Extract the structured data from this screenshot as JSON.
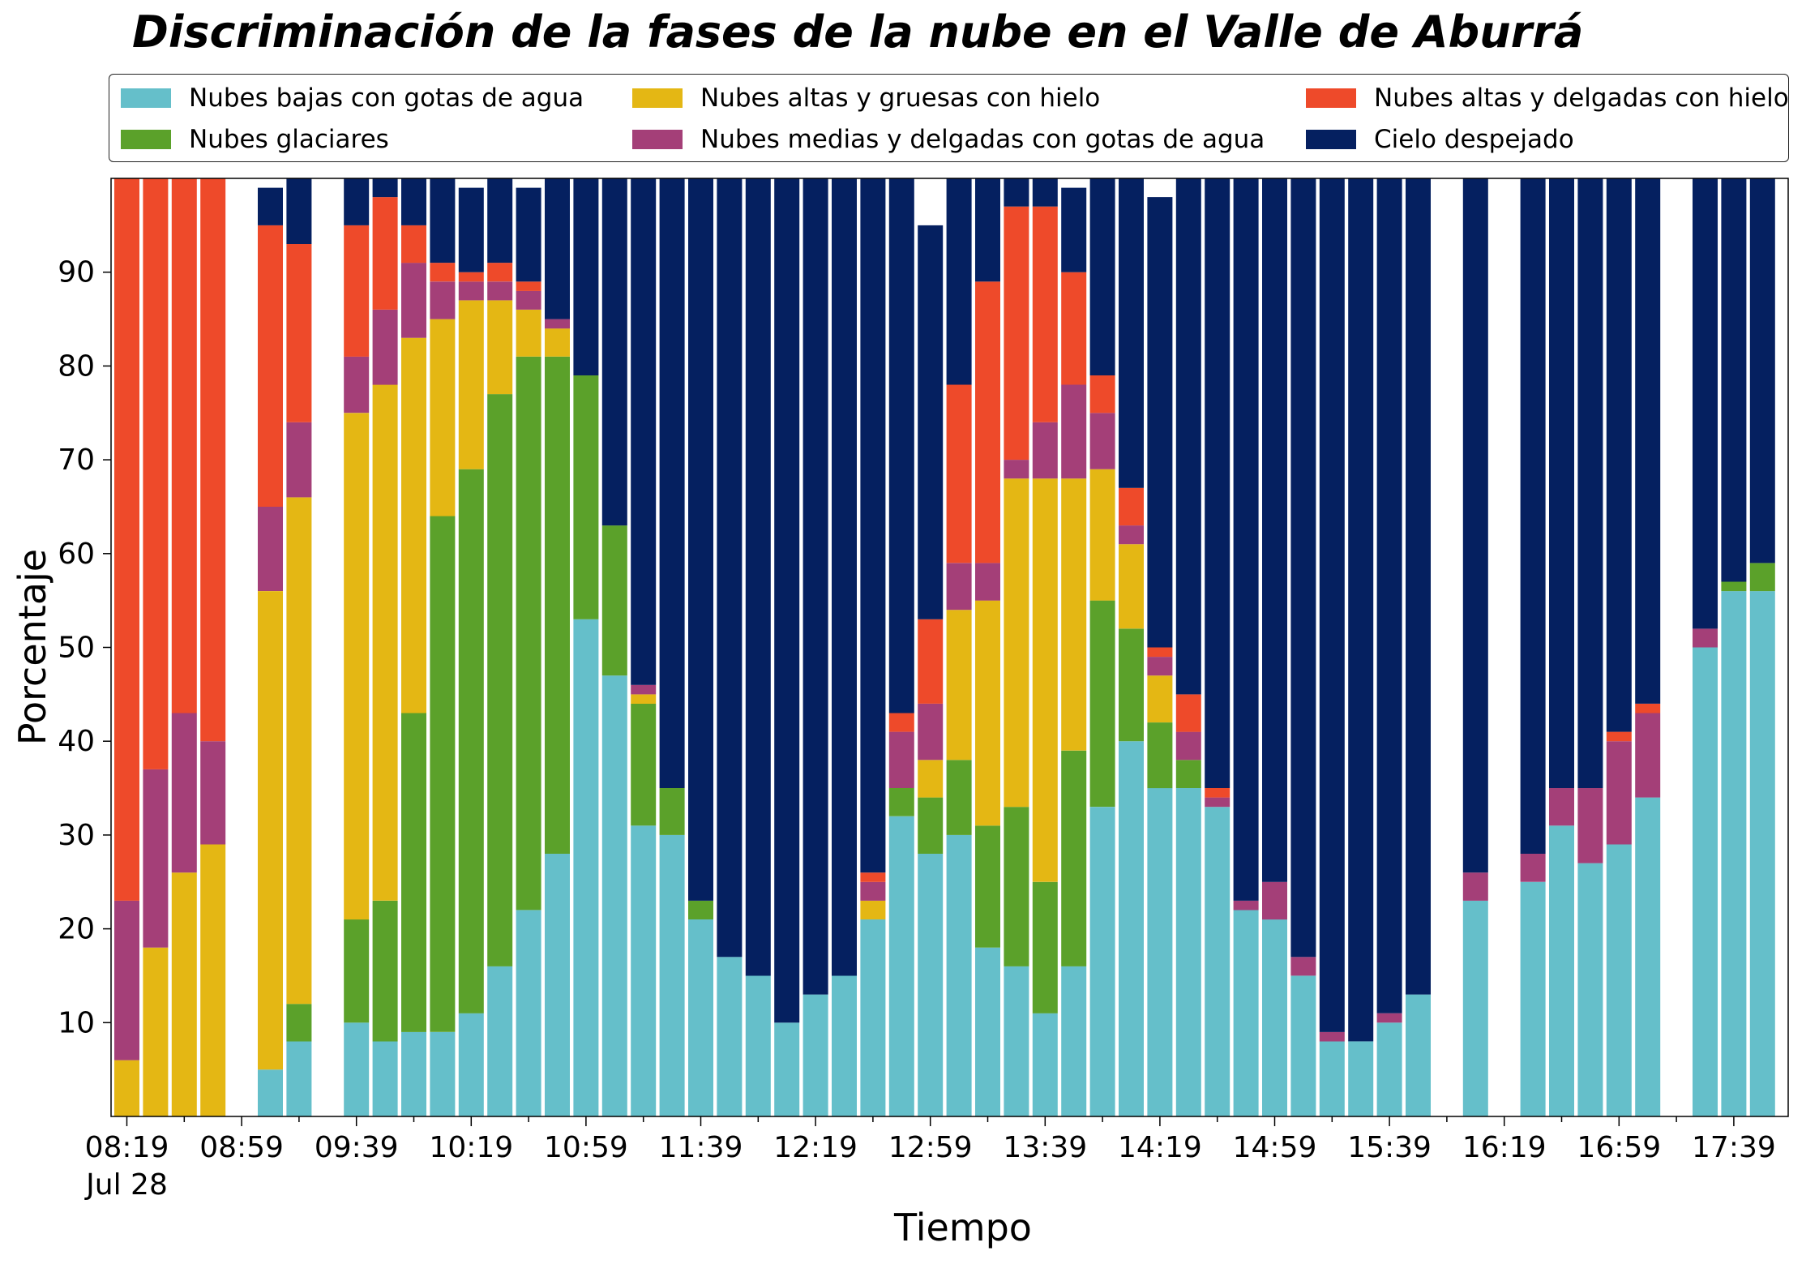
{
  "chart_data": {
    "type": "bar",
    "stacked": true,
    "title": "Discriminación de la fases de la nube en el Valle de Aburrá",
    "xlabel": "Tiempo",
    "ylabel": "Porcentaje",
    "ylim": [
      0,
      100
    ],
    "yticks": [
      10,
      20,
      30,
      40,
      50,
      60,
      70,
      80,
      90
    ],
    "grid": false,
    "legend_position": "top",
    "x_start": "08:19",
    "x_step_minutes": 10,
    "x_count": 59,
    "xtick_labels": [
      "08:19",
      "08:59",
      "09:39",
      "10:19",
      "10:59",
      "11:39",
      "12:19",
      "12:59",
      "13:39",
      "14:19",
      "14:59",
      "15:39",
      "16:19",
      "16:59",
      "17:39"
    ],
    "xtick_date_label": "Jul 28",
    "series": [
      {
        "name": "Nubes bajas con gotas de agua",
        "color": "#65bfca",
        "values": [
          0,
          0,
          0,
          0,
          null,
          5,
          8,
          null,
          10,
          8,
          9,
          9,
          11,
          16,
          22,
          28,
          53,
          47,
          31,
          30,
          21,
          17,
          15,
          10,
          13,
          15,
          21,
          32,
          28,
          30,
          18,
          16,
          11,
          16,
          33,
          40,
          35,
          35,
          33,
          22,
          21,
          15,
          8,
          8,
          10,
          13,
          null,
          23,
          null,
          25,
          31,
          27,
          29,
          34,
          null,
          50,
          56,
          56,
          null
        ]
      },
      {
        "name": "Nubes glaciares",
        "color": "#5ba12a",
        "values": [
          0,
          0,
          0,
          0,
          null,
          0,
          4,
          null,
          11,
          15,
          34,
          55,
          58,
          61,
          59,
          53,
          26,
          16,
          13,
          5,
          2,
          0,
          0,
          0,
          0,
          0,
          0,
          3,
          6,
          8,
          13,
          17,
          14,
          23,
          22,
          12,
          7,
          3,
          0,
          0,
          0,
          0,
          0,
          0,
          0,
          0,
          null,
          0,
          null,
          0,
          0,
          0,
          0,
          0,
          null,
          0,
          1,
          3,
          null
        ]
      },
      {
        "name": "Nubes altas y gruesas con hielo",
        "color": "#e4b714",
        "values": [
          6,
          18,
          26,
          29,
          null,
          51,
          54,
          null,
          54,
          55,
          40,
          21,
          18,
          10,
          5,
          3,
          0,
          0,
          1,
          0,
          0,
          0,
          0,
          0,
          0,
          0,
          2,
          0,
          4,
          16,
          24,
          35,
          43,
          29,
          14,
          9,
          5,
          0,
          0,
          0,
          0,
          0,
          0,
          0,
          0,
          0,
          null,
          0,
          null,
          0,
          0,
          0,
          0,
          0,
          null,
          0,
          0,
          0,
          null
        ]
      },
      {
        "name": "Nubes medias y delgadas con gotas de agua",
        "color": "#a43f78",
        "values": [
          17,
          19,
          17,
          11,
          null,
          9,
          8,
          null,
          6,
          8,
          8,
          4,
          2,
          2,
          2,
          1,
          0,
          0,
          1,
          0,
          0,
          0,
          0,
          0,
          0,
          0,
          2,
          6,
          6,
          5,
          4,
          2,
          6,
          10,
          6,
          2,
          2,
          3,
          1,
          1,
          4,
          2,
          1,
          0,
          1,
          0,
          null,
          3,
          null,
          3,
          4,
          8,
          11,
          9,
          null,
          2,
          0,
          0,
          null
        ]
      },
      {
        "name": "Nubes altas y delgadas con hielo",
        "color": "#ee4a2a",
        "values": [
          77,
          63,
          57,
          60,
          null,
          30,
          19,
          null,
          14,
          12,
          4,
          2,
          1,
          2,
          1,
          0,
          0,
          0,
          0,
          0,
          0,
          0,
          0,
          0,
          0,
          0,
          1,
          2,
          9,
          19,
          30,
          27,
          23,
          12,
          4,
          4,
          1,
          4,
          1,
          0,
          0,
          0,
          0,
          0,
          0,
          0,
          null,
          0,
          null,
          0,
          0,
          0,
          1,
          1,
          null,
          0,
          0,
          0,
          null
        ]
      },
      {
        "name": "Cielo despejado",
        "color": "#052060",
        "values": [
          0,
          0,
          0,
          0,
          null,
          4,
          7,
          null,
          5,
          3,
          5,
          9,
          9,
          9,
          10,
          15,
          21,
          37,
          54,
          65,
          77,
          83,
          85,
          90,
          87,
          85,
          74,
          57,
          42,
          22,
          11,
          4,
          3,
          9,
          21,
          34,
          48,
          57,
          65,
          77,
          75,
          83,
          91,
          92,
          89,
          87,
          null,
          75,
          null,
          72,
          66,
          65,
          59,
          57,
          null,
          48,
          43,
          42,
          null
        ]
      }
    ]
  }
}
